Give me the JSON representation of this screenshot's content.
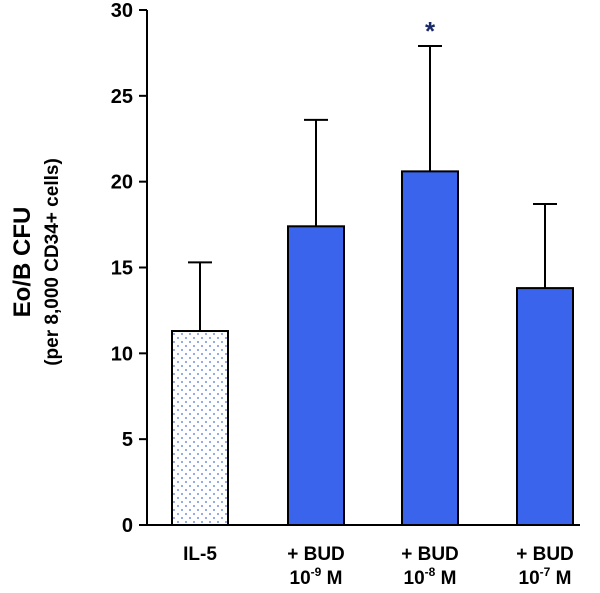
{
  "chart_data": {
    "type": "bar",
    "title": "",
    "ylabel": "Eo/B CFU",
    "ylabel_sub": "(per 8,000 CD34+ cells)",
    "xlabel": "",
    "ylim": [
      0,
      30
    ],
    "yticks": [
      0,
      5,
      10,
      15,
      20,
      25,
      30
    ],
    "categories": [
      {
        "line1": "IL-5",
        "line2": ""
      },
      {
        "line1": "+ BUD",
        "line2_base": "10",
        "line2_exp": "-9",
        "line2_unit": " M"
      },
      {
        "line1": "+ BUD",
        "line2_base": "10",
        "line2_exp": "-8",
        "line2_unit": " M"
      },
      {
        "line1": "+ BUD",
        "line2_base": "10",
        "line2_exp": "-7",
        "line2_unit": " M"
      }
    ],
    "values": [
      11.3,
      17.4,
      20.6,
      13.8
    ],
    "errors": [
      4.0,
      6.2,
      7.3,
      4.9
    ],
    "bar_styles": [
      "dotted",
      "solid",
      "solid",
      "solid"
    ],
    "significance": [
      "",
      "",
      "*",
      ""
    ],
    "grid": false,
    "colors": {
      "bar_fill": "#3a64ec",
      "dot_fill": "#4a6fd8",
      "dotted_bg": "#ffffff",
      "significance": "#1b2a6b",
      "axis": "#000000"
    }
  }
}
